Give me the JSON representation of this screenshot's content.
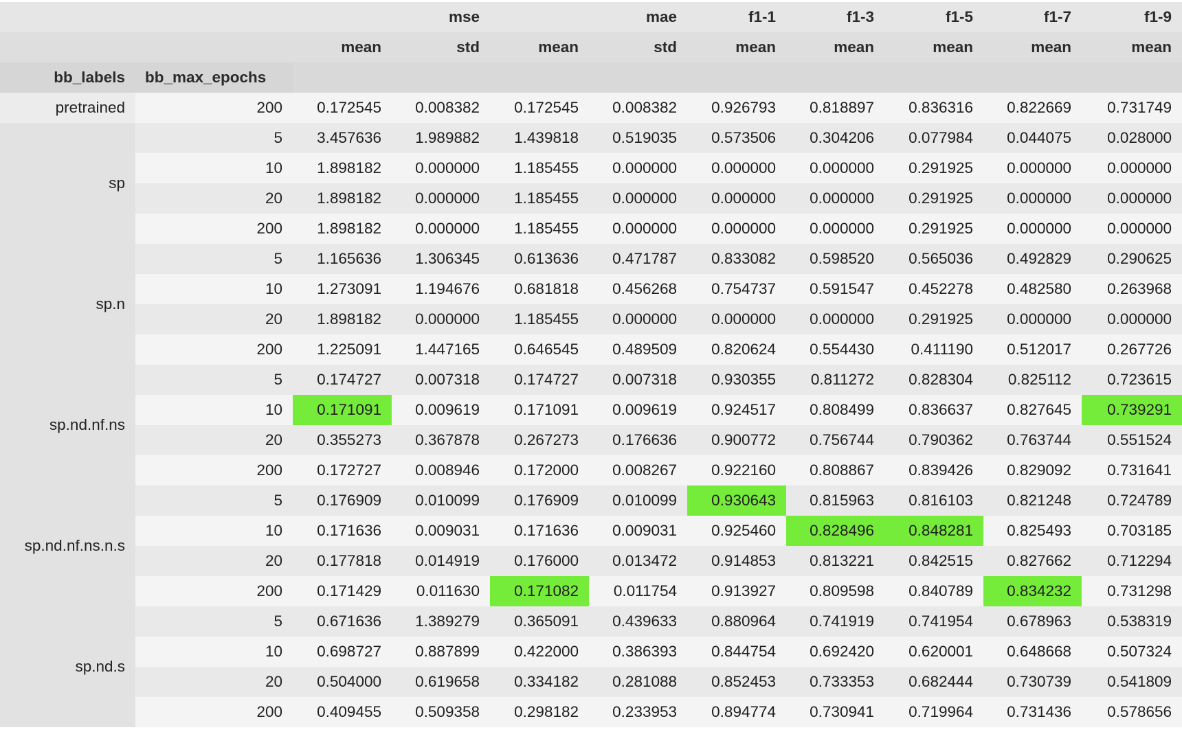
{
  "highlight_color": "#76ec3a",
  "header": {
    "metric_row": [
      "",
      "",
      "mse",
      "",
      "mae",
      "",
      "f1-1",
      "f1-3",
      "f1-5",
      "f1-7",
      "f1-9"
    ],
    "stat_row": [
      "",
      "",
      "mean",
      "std",
      "mean",
      "std",
      "mean",
      "mean",
      "mean",
      "mean",
      "mean"
    ],
    "index_names": [
      "bb_labels",
      "bb_max_epochs"
    ]
  },
  "groups": [
    {
      "label": "pretrained",
      "rows": [
        {
          "epochs": "200",
          "values": [
            "0.172545",
            "0.008382",
            "0.172545",
            "0.008382",
            "0.926793",
            "0.818897",
            "0.836316",
            "0.822669",
            "0.731749"
          ],
          "best": []
        }
      ]
    },
    {
      "label": "sp",
      "rows": [
        {
          "epochs": "5",
          "values": [
            "3.457636",
            "1.989882",
            "1.439818",
            "0.519035",
            "0.573506",
            "0.304206",
            "0.077984",
            "0.044075",
            "0.028000"
          ],
          "best": []
        },
        {
          "epochs": "10",
          "values": [
            "1.898182",
            "0.000000",
            "1.185455",
            "0.000000",
            "0.000000",
            "0.000000",
            "0.291925",
            "0.000000",
            "0.000000"
          ],
          "best": []
        },
        {
          "epochs": "20",
          "values": [
            "1.898182",
            "0.000000",
            "1.185455",
            "0.000000",
            "0.000000",
            "0.000000",
            "0.291925",
            "0.000000",
            "0.000000"
          ],
          "best": []
        },
        {
          "epochs": "200",
          "values": [
            "1.898182",
            "0.000000",
            "1.185455",
            "0.000000",
            "0.000000",
            "0.000000",
            "0.291925",
            "0.000000",
            "0.000000"
          ],
          "best": []
        }
      ]
    },
    {
      "label": "sp.n",
      "rows": [
        {
          "epochs": "5",
          "values": [
            "1.165636",
            "1.306345",
            "0.613636",
            "0.471787",
            "0.833082",
            "0.598520",
            "0.565036",
            "0.492829",
            "0.290625"
          ],
          "best": []
        },
        {
          "epochs": "10",
          "values": [
            "1.273091",
            "1.194676",
            "0.681818",
            "0.456268",
            "0.754737",
            "0.591547",
            "0.452278",
            "0.482580",
            "0.263968"
          ],
          "best": []
        },
        {
          "epochs": "20",
          "values": [
            "1.898182",
            "0.000000",
            "1.185455",
            "0.000000",
            "0.000000",
            "0.000000",
            "0.291925",
            "0.000000",
            "0.000000"
          ],
          "best": []
        },
        {
          "epochs": "200",
          "values": [
            "1.225091",
            "1.447165",
            "0.646545",
            "0.489509",
            "0.820624",
            "0.554430",
            "0.411190",
            "0.512017",
            "0.267726"
          ],
          "best": []
        }
      ]
    },
    {
      "label": "sp.nd.nf.ns",
      "rows": [
        {
          "epochs": "5",
          "values": [
            "0.174727",
            "0.007318",
            "0.174727",
            "0.007318",
            "0.930355",
            "0.811272",
            "0.828304",
            "0.825112",
            "0.723615"
          ],
          "best": []
        },
        {
          "epochs": "10",
          "values": [
            "0.171091",
            "0.009619",
            "0.171091",
            "0.009619",
            "0.924517",
            "0.808499",
            "0.836637",
            "0.827645",
            "0.739291"
          ],
          "best": [
            0,
            8
          ]
        },
        {
          "epochs": "20",
          "values": [
            "0.355273",
            "0.367878",
            "0.267273",
            "0.176636",
            "0.900772",
            "0.756744",
            "0.790362",
            "0.763744",
            "0.551524"
          ],
          "best": []
        },
        {
          "epochs": "200",
          "values": [
            "0.172727",
            "0.008946",
            "0.172000",
            "0.008267",
            "0.922160",
            "0.808867",
            "0.839426",
            "0.829092",
            "0.731641"
          ],
          "best": []
        }
      ]
    },
    {
      "label": "sp.nd.nf.ns.n.s",
      "rows": [
        {
          "epochs": "5",
          "values": [
            "0.176909",
            "0.010099",
            "0.176909",
            "0.010099",
            "0.930643",
            "0.815963",
            "0.816103",
            "0.821248",
            "0.724789"
          ],
          "best": [
            4
          ]
        },
        {
          "epochs": "10",
          "values": [
            "0.171636",
            "0.009031",
            "0.171636",
            "0.009031",
            "0.925460",
            "0.828496",
            "0.848281",
            "0.825493",
            "0.703185"
          ],
          "best": [
            5,
            6
          ]
        },
        {
          "epochs": "20",
          "values": [
            "0.177818",
            "0.014919",
            "0.176000",
            "0.013472",
            "0.914853",
            "0.813221",
            "0.842515",
            "0.827662",
            "0.712294"
          ],
          "best": []
        },
        {
          "epochs": "200",
          "values": [
            "0.171429",
            "0.011630",
            "0.171082",
            "0.011754",
            "0.913927",
            "0.809598",
            "0.840789",
            "0.834232",
            "0.731298"
          ],
          "best": [
            2,
            7
          ]
        }
      ]
    },
    {
      "label": "sp.nd.s",
      "rows": [
        {
          "epochs": "5",
          "values": [
            "0.671636",
            "1.389279",
            "0.365091",
            "0.439633",
            "0.880964",
            "0.741919",
            "0.741954",
            "0.678963",
            "0.538319"
          ],
          "best": []
        },
        {
          "epochs": "10",
          "values": [
            "0.698727",
            "0.887899",
            "0.422000",
            "0.386393",
            "0.844754",
            "0.692420",
            "0.620001",
            "0.648668",
            "0.507324"
          ],
          "best": []
        },
        {
          "epochs": "20",
          "values": [
            "0.504000",
            "0.619658",
            "0.334182",
            "0.281088",
            "0.852453",
            "0.733353",
            "0.682444",
            "0.730739",
            "0.541809"
          ],
          "best": []
        },
        {
          "epochs": "200",
          "values": [
            "0.409455",
            "0.509358",
            "0.298182",
            "0.233953",
            "0.894774",
            "0.730941",
            "0.719964",
            "0.731436",
            "0.578656"
          ],
          "best": []
        }
      ]
    }
  ]
}
